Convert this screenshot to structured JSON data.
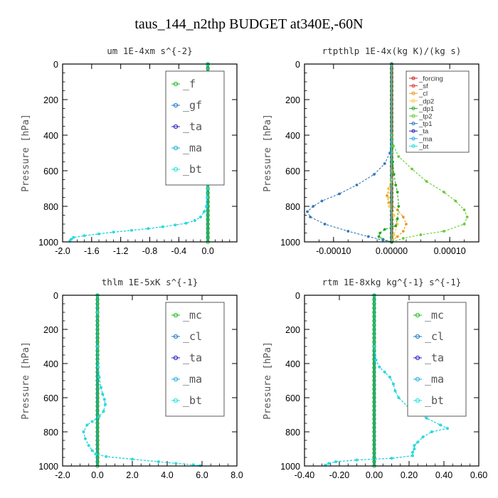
{
  "figure_title": "taus_144_n2thp  BUDGET at340E,-60N",
  "chart_data": [
    {
      "type": "line",
      "title": "um  1E-4xm s^{-2}",
      "ylabel": "Pressure [hPa]",
      "xlim": [
        -2.0,
        0.4
      ],
      "ylim": [
        1000,
        0
      ],
      "xticks": [
        "-2.0",
        "-1.6",
        "-1.2",
        "-0.8",
        "-0.4",
        "0.0"
      ],
      "xtick_values": [
        -2.0,
        -1.6,
        -1.2,
        -0.8,
        -0.4,
        0.0
      ],
      "yticks": [
        "0",
        "200",
        "400",
        "600",
        "800",
        "1000"
      ],
      "ytick_values": [
        0,
        200,
        400,
        600,
        800,
        1000
      ],
      "legend": {
        "position": "top-right",
        "size": "large"
      },
      "series": [
        {
          "name": "_f",
          "color": "#22bb22",
          "marker": "o",
          "x": [
            0.0,
            0.0
          ],
          "y": [
            0,
            1000
          ]
        },
        {
          "name": "_gf",
          "color": "#1e78c8",
          "marker": "x",
          "x": [
            0,
            0,
            0,
            0,
            0,
            0,
            0,
            0,
            -0.01,
            -0.02,
            -0.05,
            -0.1,
            -0.18,
            -0.3,
            -0.45,
            -0.62,
            -0.82,
            -1.05,
            -1.3,
            -1.5,
            -1.7,
            -1.85,
            -1.88,
            -1.9
          ],
          "y": [
            0,
            100,
            200,
            300,
            400,
            500,
            600,
            700,
            750,
            800,
            830,
            860,
            880,
            895,
            905,
            915,
            925,
            935,
            945,
            955,
            965,
            975,
            985,
            995
          ]
        },
        {
          "name": "_ta",
          "color": "#2020c0",
          "marker": "+",
          "x": [
            0.0,
            0.0
          ],
          "y": [
            0,
            1000
          ]
        },
        {
          "name": "_ma",
          "color": "#20b0e0",
          "marker": "-",
          "x": [
            0.0,
            0.0
          ],
          "y": [
            0,
            1000
          ]
        },
        {
          "name": "_bt",
          "color": "#20e0e0",
          "marker": "diamond",
          "x": [
            0,
            0,
            0,
            0,
            0,
            0,
            0,
            0,
            -0.01,
            -0.02,
            -0.05,
            -0.1,
            -0.18,
            -0.3,
            -0.45,
            -0.62,
            -0.82,
            -1.05,
            -1.3,
            -1.5,
            -1.7,
            -1.85,
            -1.88,
            -1.9
          ],
          "y": [
            0,
            100,
            200,
            300,
            400,
            500,
            600,
            700,
            750,
            800,
            830,
            860,
            880,
            895,
            905,
            915,
            925,
            935,
            945,
            955,
            965,
            975,
            985,
            995
          ]
        }
      ]
    },
    {
      "type": "line",
      "title": "rtpthlp  1E-4x(kg K)/(kg s)",
      "ylabel": "Pressure [hPa]",
      "xlim": [
        -0.00015,
        0.00015
      ],
      "ylim": [
        1000,
        0
      ],
      "xticks": [
        "-0.00010",
        "0.00000",
        "0.00010"
      ],
      "xtick_values": [
        -0.0001,
        0.0,
        0.0001
      ],
      "yticks": [
        "0",
        "200",
        "400",
        "600",
        "800",
        "1000"
      ],
      "ytick_values": [
        0,
        200,
        400,
        600,
        800,
        1000
      ],
      "legend": {
        "position": "top-right",
        "size": "small"
      },
      "series": [
        {
          "name": "_forcing",
          "color": "#cc2222",
          "marker": "o",
          "x": [
            0.0,
            0.0
          ],
          "y": [
            0,
            1000
          ]
        },
        {
          "name": "_sf",
          "color": "#dd3333",
          "marker": "+",
          "x": [
            0.0,
            0.0
          ],
          "y": [
            0,
            1000
          ]
        },
        {
          "name": "_cl",
          "color": "#ee9922",
          "marker": "^",
          "x": [
            0,
            0,
            0,
            0,
            -5e-06,
            -8e-06,
            -5e-06,
            1e-05,
            2e-05,
            2.5e-05,
            2e-05,
            1e-05,
            2e-06,
            0.0
          ],
          "y": [
            0,
            400,
            600,
            650,
            700,
            740,
            780,
            820,
            860,
            900,
            940,
            970,
            990,
            1000
          ]
        },
        {
          "name": "_dp2",
          "color": "#ffcc44",
          "marker": "o",
          "x": [
            0,
            0,
            0,
            -4e-06,
            -6e-06,
            -4e-06,
            4e-06,
            1e-05,
            4e-06,
            0.0
          ],
          "y": [
            0,
            500,
            650,
            700,
            750,
            800,
            850,
            900,
            960,
            1000
          ]
        },
        {
          "name": "_dp1",
          "color": "#22aa22",
          "marker": "o",
          "x": [
            0,
            0,
            5e-07,
            2e-06,
            4e-06,
            7e-06,
            1e-05,
            1.2e-05,
            1e-05,
            7e-06,
            -1.2e-05,
            -2e-05,
            -2.2e-05,
            -1.5e-05,
            0.0
          ],
          "y": [
            0,
            400,
            470,
            550,
            620,
            680,
            720,
            800,
            870,
            910,
            930,
            950,
            970,
            985,
            1000
          ]
        },
        {
          "name": "_tp2",
          "color": "#66cc33",
          "marker": "x",
          "x": [
            0,
            0,
            3e-06,
            1.2e-05,
            3.5e-05,
            6e-05,
            9e-05,
            0.00011,
            0.000125,
            0.00013,
            0.000125,
            9e-05,
            5e-05,
            2e-05,
            0.0
          ],
          "y": [
            0,
            400,
            460,
            520,
            590,
            660,
            720,
            770,
            820,
            860,
            900,
            940,
            960,
            980,
            1000
          ]
        },
        {
          "name": "_tp1",
          "color": "#3377bb",
          "marker": "x",
          "x": [
            0,
            0,
            -3e-06,
            -1.2e-05,
            -3e-05,
            -6e-05,
            -9e-05,
            -0.00012,
            -0.000135,
            -0.000145,
            -0.00014,
            -0.000115,
            -7.5e-05,
            -4e-05,
            -1.5e-05,
            0.0
          ],
          "y": [
            0,
            440,
            500,
            560,
            620,
            680,
            730,
            770,
            800,
            830,
            860,
            900,
            940,
            970,
            990,
            1000
          ]
        },
        {
          "name": "_ta",
          "color": "#2020c0",
          "marker": "+",
          "x": [
            0.0,
            0.0
          ],
          "y": [
            0,
            1000
          ]
        },
        {
          "name": "_ma",
          "color": "#20b0e0",
          "marker": "-",
          "x": [
            0.0,
            0.0
          ],
          "y": [
            0,
            1000
          ]
        },
        {
          "name": "_bt",
          "color": "#20e0e0",
          "marker": "diamond",
          "x": [
            0.0,
            0.0
          ],
          "y": [
            0,
            1000
          ]
        }
      ]
    },
    {
      "type": "line",
      "title": "thlm  1E-5xK s^{-1}",
      "ylabel": "Pressure [hPa]",
      "xlim": [
        -2.0,
        8.0
      ],
      "ylim": [
        1000,
        0
      ],
      "xticks": [
        "-2.0",
        "0.0",
        "2.0",
        "4.0",
        "6.0",
        "8.0"
      ],
      "xtick_values": [
        -2.0,
        0.0,
        2.0,
        4.0,
        6.0,
        8.0
      ],
      "yticks": [
        "0",
        "200",
        "400",
        "600",
        "800",
        "1000"
      ],
      "ytick_values": [
        0,
        200,
        400,
        600,
        800,
        1000
      ],
      "legend": {
        "position": "top-right",
        "size": "large"
      },
      "series": [
        {
          "name": "_mc",
          "color": "#22bb22",
          "marker": "o",
          "x": [
            0.0,
            0.0
          ],
          "y": [
            0,
            1000
          ]
        },
        {
          "name": "_cl",
          "color": "#1e78c8",
          "marker": "x",
          "x": [
            0,
            0,
            0,
            0.05,
            0.1,
            0.2,
            0.3,
            0.4,
            0.45,
            0.35,
            0.1,
            -0.3,
            -0.6,
            -0.8,
            -0.7,
            -0.5,
            -0.3,
            -0.1,
            0.5,
            2.0,
            3.5,
            4.5,
            5.5,
            5.9
          ],
          "y": [
            0,
            100,
            300,
            420,
            480,
            540,
            580,
            610,
            640,
            680,
            710,
            740,
            760,
            800,
            840,
            880,
            910,
            930,
            945,
            960,
            975,
            985,
            993,
            998
          ]
        },
        {
          "name": "_ta",
          "color": "#2020c0",
          "marker": "+",
          "x": [
            0.0,
            0.0
          ],
          "y": [
            0,
            1000
          ]
        },
        {
          "name": "_ma",
          "color": "#20b0e0",
          "marker": "-",
          "x": [
            0.0,
            0.0
          ],
          "y": [
            0,
            1000
          ]
        },
        {
          "name": "_bt",
          "color": "#20e0e0",
          "marker": "diamond",
          "x": [
            0,
            0,
            0,
            0.05,
            0.1,
            0.2,
            0.3,
            0.4,
            0.45,
            0.35,
            0.1,
            -0.3,
            -0.6,
            -0.8,
            -0.7,
            -0.5,
            -0.3,
            -0.1,
            0.5,
            2.0,
            3.5,
            4.5,
            5.5,
            5.9
          ],
          "y": [
            0,
            100,
            300,
            420,
            480,
            540,
            580,
            610,
            640,
            680,
            710,
            740,
            760,
            800,
            840,
            880,
            910,
            930,
            945,
            960,
            975,
            985,
            993,
            998
          ]
        }
      ]
    },
    {
      "type": "line",
      "title": "rtm  1E-8xkg kg^{-1} s^{-1}",
      "ylabel": "Pressure [hPa]",
      "xlim": [
        -0.4,
        0.6
      ],
      "ylim": [
        1000,
        0
      ],
      "xticks": [
        "-0.40",
        "-0.20",
        "0.00",
        "0.20",
        "0.40",
        "0.60"
      ],
      "xtick_values": [
        -0.4,
        -0.2,
        0.0,
        0.2,
        0.4,
        0.6
      ],
      "yticks": [
        "0",
        "200",
        "400",
        "600",
        "800",
        "1000"
      ],
      "ytick_values": [
        0,
        200,
        400,
        600,
        800,
        1000
      ],
      "legend": {
        "position": "top-right",
        "size": "large"
      },
      "series": [
        {
          "name": "_mc",
          "color": "#22bb22",
          "marker": "o",
          "x": [
            0.0,
            0.0
          ],
          "y": [
            0,
            1000
          ]
        },
        {
          "name": "_cl",
          "color": "#1e78c8",
          "marker": "x",
          "x": [
            0,
            0,
            0.01,
            0.03,
            0.06,
            0.09,
            0.11,
            0.12,
            0.14,
            0.2,
            0.3,
            0.38,
            0.42,
            0.33,
            0.28,
            0.25,
            0.23,
            0.23,
            0.22,
            0.22,
            0.1,
            -0.1,
            -0.22,
            -0.26,
            -0.28
          ],
          "y": [
            0,
            300,
            380,
            420,
            450,
            480,
            520,
            560,
            600,
            660,
            720,
            760,
            780,
            800,
            830,
            860,
            880,
            900,
            920,
            940,
            955,
            965,
            975,
            985,
            995
          ]
        },
        {
          "name": "_ta",
          "color": "#2020c0",
          "marker": "+",
          "x": [
            0.0,
            0.0
          ],
          "y": [
            0,
            1000
          ]
        },
        {
          "name": "_ma",
          "color": "#20b0e0",
          "marker": "-",
          "x": [
            0.0,
            0.0
          ],
          "y": [
            0,
            1000
          ]
        },
        {
          "name": "_bt",
          "color": "#20e0e0",
          "marker": "diamond",
          "x": [
            0,
            0,
            0.01,
            0.03,
            0.06,
            0.09,
            0.11,
            0.12,
            0.14,
            0.2,
            0.3,
            0.38,
            0.42,
            0.33,
            0.28,
            0.25,
            0.23,
            0.23,
            0.22,
            0.22,
            0.1,
            -0.1,
            -0.22,
            -0.26,
            -0.28
          ],
          "y": [
            0,
            300,
            380,
            420,
            450,
            480,
            520,
            560,
            600,
            660,
            720,
            760,
            780,
            800,
            830,
            860,
            880,
            900,
            920,
            940,
            955,
            965,
            975,
            985,
            995
          ]
        }
      ]
    }
  ]
}
